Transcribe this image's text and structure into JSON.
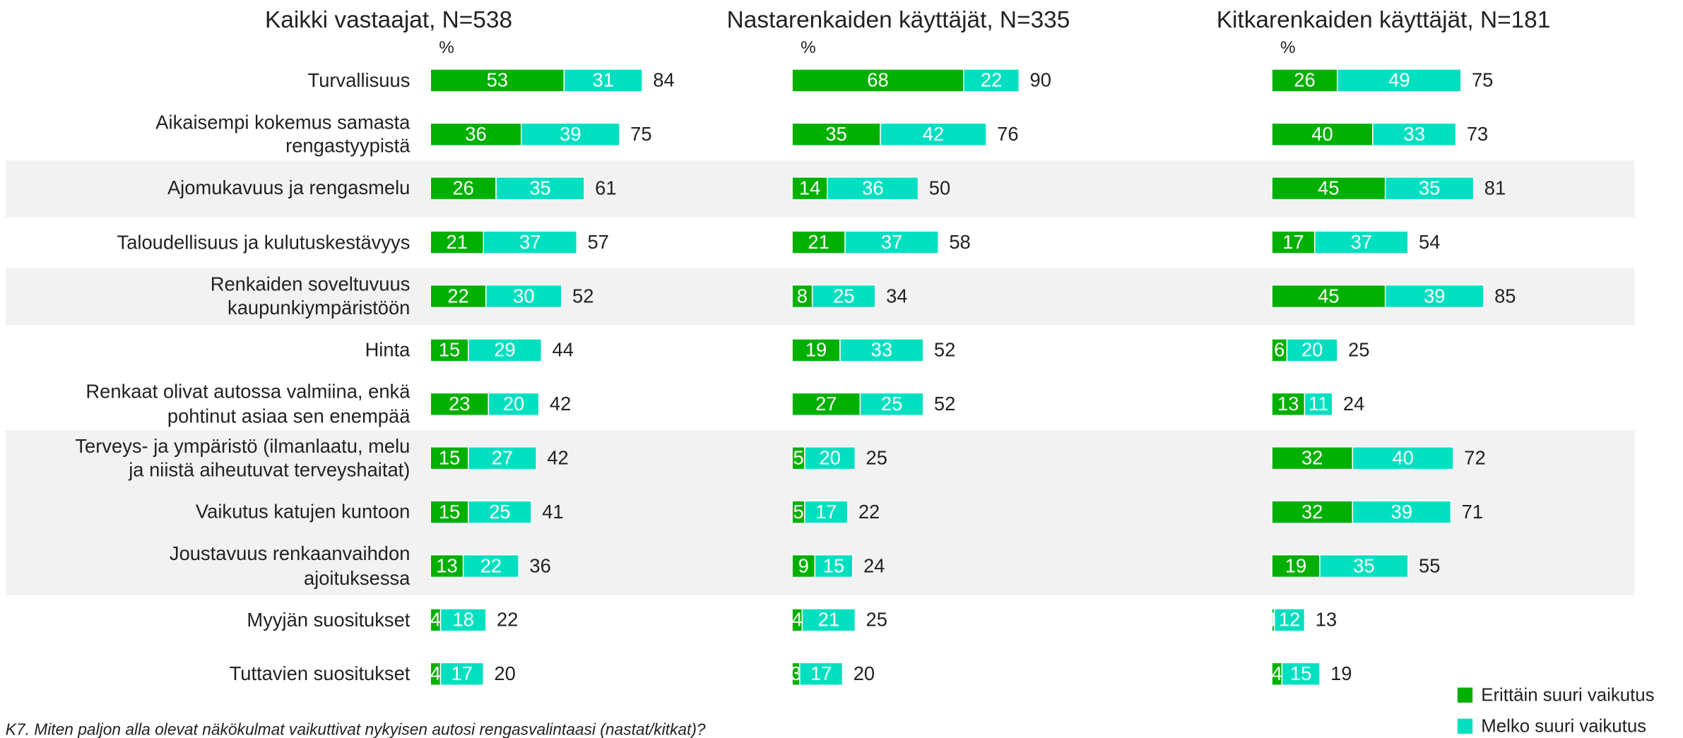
{
  "chart_data": [
    {
      "type": "stacked-barh",
      "title": "Kaikki vastaajat, N=538",
      "unit": "%",
      "categories": [
        "Turvallisuus",
        "Aikaisempi kokemus samasta\nrengastyypistä",
        "Ajomukavuus ja rengasmelu",
        "Taloudellisuus ja kulutuskestävyys",
        "Renkaiden soveltuvuus\nkaupunkiympäristöön",
        "Hinta",
        "Renkaat olivat autossa valmiina, enkä\npohtinut asiaa sen enempää",
        "Terveys- ja ympäristö (ilmanlaatu, melu\nja niistä aiheutuvat terveyshaitat)",
        "Vaikutus katujen kuntoon",
        "Joustavuus renkaanvaihdon\najoituksessa",
        "Myyjän suositukset",
        "Tuttavien suositukset"
      ],
      "series": [
        {
          "name": "Erittäin suuri vaikutus",
          "color": "#00b000",
          "values": [
            53,
            36,
            26,
            21,
            22,
            15,
            23,
            15,
            15,
            13,
            4,
            4
          ]
        },
        {
          "name": "Melko suuri vaikutus",
          "color": "#00e0c0",
          "values": [
            31,
            39,
            35,
            37,
            30,
            29,
            20,
            27,
            25,
            22,
            18,
            17
          ]
        }
      ],
      "totals": [
        84,
        75,
        61,
        57,
        52,
        44,
        42,
        42,
        41,
        36,
        22,
        20
      ]
    },
    {
      "type": "stacked-barh",
      "title": "Nastarenkaiden käyttäjät, N=335",
      "unit": "%",
      "series": [
        {
          "color": "#00b000",
          "values": [
            68,
            35,
            14,
            21,
            8,
            19,
            27,
            5,
            5,
            9,
            4,
            3
          ]
        },
        {
          "color": "#00e0c0",
          "values": [
            22,
            42,
            36,
            37,
            25,
            33,
            25,
            20,
            17,
            15,
            21,
            17
          ]
        }
      ],
      "totals": [
        90,
        76,
        50,
        58,
        34,
        52,
        52,
        25,
        22,
        24,
        25,
        20
      ]
    },
    {
      "type": "stacked-barh",
      "title": "Kitkarenkaiden käyttäjät, N=181",
      "unit": "%",
      "series": [
        {
          "color": "#00b000",
          "values": [
            26,
            40,
            45,
            17,
            45,
            6,
            13,
            32,
            32,
            19,
            1,
            4
          ]
        },
        {
          "color": "#00e0c0",
          "values": [
            49,
            33,
            35,
            37,
            39,
            20,
            11,
            40,
            39,
            35,
            12,
            15
          ]
        }
      ],
      "totals": [
        75,
        73,
        81,
        54,
        85,
        25,
        24,
        72,
        71,
        55,
        13,
        19
      ]
    }
  ],
  "note": "K7. Miten paljon alla olevat näkökulmat vaikuttivat nykyisen autosi rengasvalintaasi (nastat/kitkat)?"
}
